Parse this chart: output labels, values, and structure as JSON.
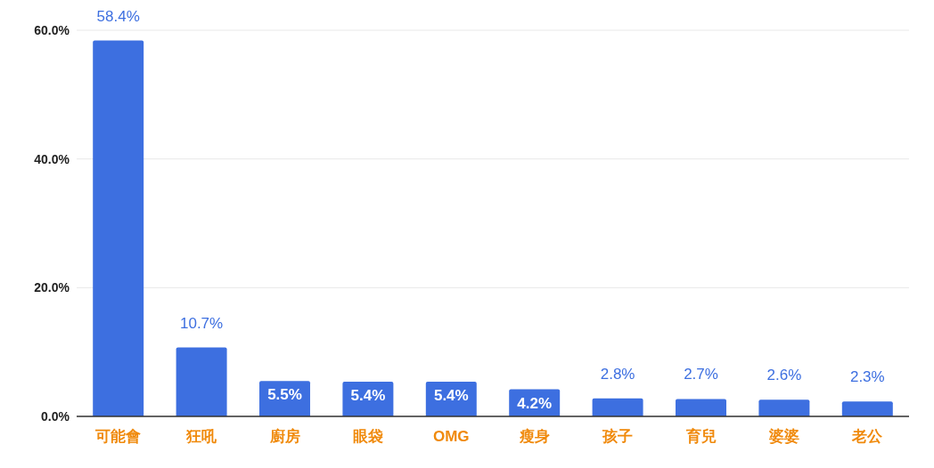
{
  "chart_data": {
    "type": "bar",
    "categories": [
      "可能會",
      "狂吼",
      "廚房",
      "眼袋",
      "OMG",
      "瘦身",
      "孩子",
      "育兒",
      "婆婆",
      "老公"
    ],
    "values": [
      58.4,
      10.7,
      5.5,
      5.4,
      5.4,
      4.2,
      2.8,
      2.7,
      2.6,
      2.3
    ],
    "value_labels": [
      "58.4%",
      "10.7%",
      "5.5%",
      "5.4%",
      "5.4%",
      "4.2%",
      "2.8%",
      "2.7%",
      "2.6%",
      "2.3%"
    ],
    "color": "#3d6fe0",
    "ylim": [
      0,
      60
    ],
    "yticks": [
      {
        "value": 0,
        "label": "0.0%"
      },
      {
        "value": 20,
        "label": "20.0%"
      },
      {
        "value": 40,
        "label": "40.0%"
      },
      {
        "value": 60,
        "label": "60.0%"
      }
    ],
    "grid": "y"
  }
}
